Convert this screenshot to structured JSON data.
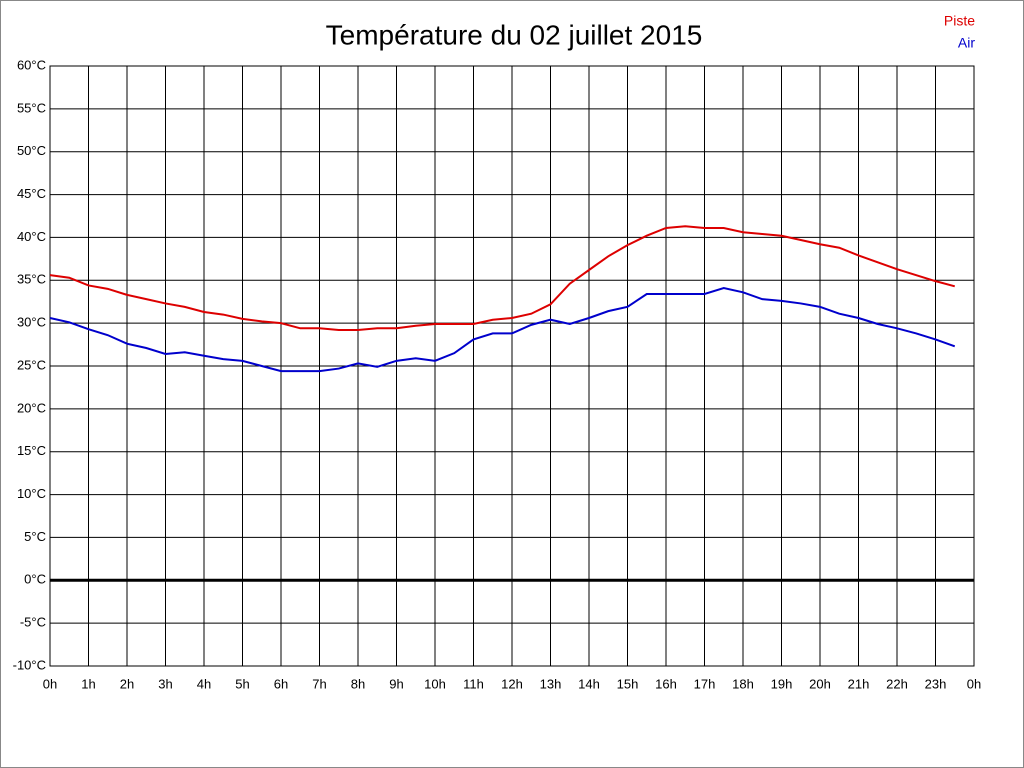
{
  "chart_data": {
    "type": "line",
    "title": "Température du 02 juillet 2015",
    "x": [
      0,
      0.5,
      1,
      1.5,
      2,
      2.5,
      3,
      3.5,
      4,
      4.5,
      5,
      5.5,
      6,
      6.5,
      7,
      7.5,
      8,
      8.5,
      9,
      9.5,
      10,
      10.5,
      11,
      11.5,
      12,
      12.5,
      13,
      13.5,
      14,
      14.5,
      15,
      15.5,
      16,
      16.5,
      17,
      17.5,
      18,
      18.5,
      19,
      19.5,
      20,
      20.5,
      21,
      21.5,
      22,
      22.5,
      23,
      23.5
    ],
    "series": [
      {
        "name": "Piste",
        "color": "#dd0000",
        "values": [
          35.6,
          35.3,
          34.4,
          34.0,
          33.3,
          32.8,
          32.3,
          31.9,
          31.3,
          31.0,
          30.5,
          30.2,
          30.0,
          29.4,
          29.4,
          29.2,
          29.2,
          29.4,
          29.4,
          29.7,
          29.9,
          29.9,
          29.9,
          30.4,
          30.6,
          31.1,
          32.2,
          34.6,
          36.2,
          37.8,
          39.1,
          40.2,
          41.1,
          41.3,
          41.1,
          41.1,
          40.6,
          40.4,
          40.2,
          39.7,
          39.2,
          38.8,
          37.9,
          37.1,
          36.3,
          35.6,
          34.9,
          34.3
        ]
      },
      {
        "name": "Air",
        "color": "#0000cc",
        "values": [
          30.6,
          30.1,
          29.3,
          28.6,
          27.6,
          27.1,
          26.4,
          26.6,
          26.2,
          25.8,
          25.6,
          25.0,
          24.4,
          24.4,
          24.4,
          24.7,
          25.3,
          24.9,
          25.6,
          25.9,
          25.6,
          26.5,
          28.1,
          28.8,
          28.8,
          29.8,
          30.4,
          29.9,
          30.6,
          31.4,
          31.9,
          33.4,
          33.4,
          33.4,
          33.4,
          34.1,
          33.6,
          32.8,
          32.6,
          32.3,
          31.9,
          31.1,
          30.6,
          29.9,
          29.4,
          28.8,
          28.1,
          27.3
        ]
      }
    ],
    "xlim": [
      0,
      24
    ],
    "xticks": [
      {
        "value": 0,
        "label": "0h"
      },
      {
        "value": 1,
        "label": "1h"
      },
      {
        "value": 2,
        "label": "2h"
      },
      {
        "value": 3,
        "label": "3h"
      },
      {
        "value": 4,
        "label": "4h"
      },
      {
        "value": 5,
        "label": "5h"
      },
      {
        "value": 6,
        "label": "6h"
      },
      {
        "value": 7,
        "label": "7h"
      },
      {
        "value": 8,
        "label": "8h"
      },
      {
        "value": 9,
        "label": "9h"
      },
      {
        "value": 10,
        "label": "10h"
      },
      {
        "value": 11,
        "label": "11h"
      },
      {
        "value": 12,
        "label": "12h"
      },
      {
        "value": 13,
        "label": "13h"
      },
      {
        "value": 14,
        "label": "14h"
      },
      {
        "value": 15,
        "label": "15h"
      },
      {
        "value": 16,
        "label": "16h"
      },
      {
        "value": 17,
        "label": "17h"
      },
      {
        "value": 18,
        "label": "18h"
      },
      {
        "value": 19,
        "label": "19h"
      },
      {
        "value": 20,
        "label": "20h"
      },
      {
        "value": 21,
        "label": "21h"
      },
      {
        "value": 22,
        "label": "22h"
      },
      {
        "value": 23,
        "label": "23h"
      },
      {
        "value": 24,
        "label": "0h"
      }
    ],
    "ylim": [
      -10,
      60
    ],
    "yticks": [
      {
        "value": -10,
        "label": "-10°C"
      },
      {
        "value": -5,
        "label": "-5°C"
      },
      {
        "value": 0,
        "label": "0°C"
      },
      {
        "value": 5,
        "label": "5°C"
      },
      {
        "value": 10,
        "label": "10°C"
      },
      {
        "value": 15,
        "label": "15°C"
      },
      {
        "value": 20,
        "label": "20°C"
      },
      {
        "value": 25,
        "label": "25°C"
      },
      {
        "value": 30,
        "label": "30°C"
      },
      {
        "value": 35,
        "label": "35°C"
      },
      {
        "value": 40,
        "label": "40°C"
      },
      {
        "value": 45,
        "label": "45°C"
      },
      {
        "value": 50,
        "label": "50°C"
      },
      {
        "value": 55,
        "label": "55°C"
      },
      {
        "value": 60,
        "label": "60°C"
      }
    ],
    "grid": true,
    "legend": "top-right"
  }
}
